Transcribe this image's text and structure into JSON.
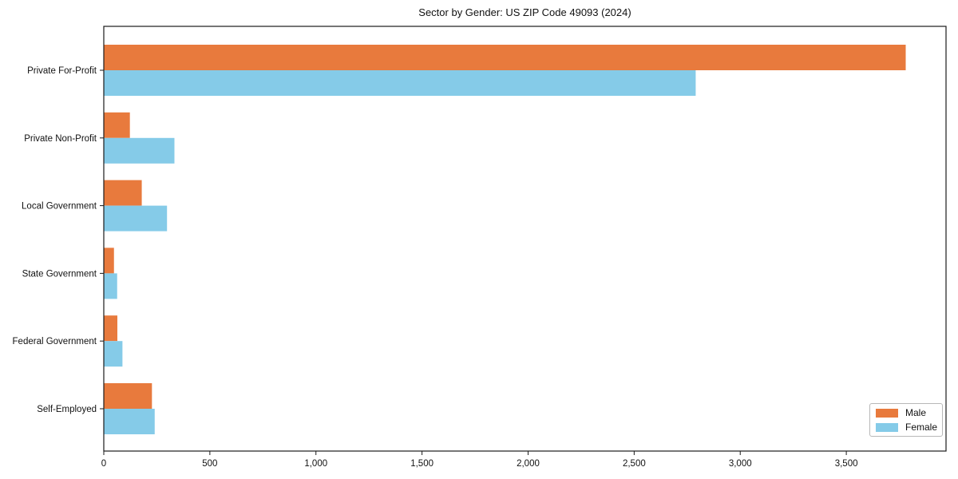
{
  "chart_data": {
    "type": "bar",
    "orientation": "horizontal",
    "title": "Sector by Gender: US ZIP Code 49093 (2024)",
    "categories": [
      "Private For-Profit",
      "Private Non-Profit",
      "Local Government",
      "State Government",
      "Federal Government",
      "Self-Employed"
    ],
    "series": [
      {
        "name": "Male",
        "color": "#E87A3D",
        "values": [
          3780,
          123,
          179,
          48,
          64,
          227
        ]
      },
      {
        "name": "Female",
        "color": "#85CBE8",
        "values": [
          2790,
          333,
          298,
          63,
          88,
          240
        ]
      }
    ],
    "xlabel": "",
    "ylabel": "",
    "xlim": [
      0,
      3970
    ],
    "xticks": [
      0,
      500,
      1000,
      1500,
      2000,
      2500,
      3000,
      3500
    ],
    "xtick_labels": [
      "0",
      "500",
      "1,000",
      "1,500",
      "2,000",
      "2,500",
      "3,000",
      "3,500"
    ],
    "legend_position": "lower right",
    "grid": false,
    "frame_color": "#1a1a1a",
    "text_color": "#111111"
  }
}
